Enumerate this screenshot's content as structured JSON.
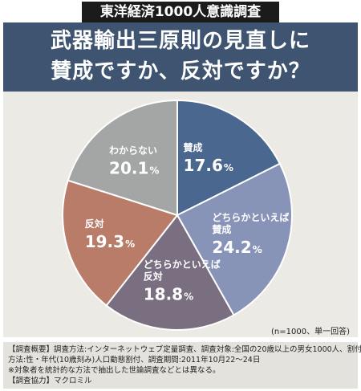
{
  "badge": "東洋経済1000人意識調査",
  "header": {
    "line1": "武器輸出三原則の見直しに",
    "line2": "賛成ですか、反対ですか？"
  },
  "note": "(n=1000、単一回答)",
  "footer": {
    "line1": "【調査概要】調査方法:インターネットウェブ定量調査、調査対象:全国の20歳以上の男女1000人、割付",
    "line2": "方法:性・年代(10歳刻み)人口動態割付、調査期間:2011年10月22～24日",
    "line3": "※対象者を統計的な方法で抽出した世論調査などとは異なる。",
    "line4": "【調査協力】マクロミル"
  },
  "chart_data": {
    "type": "pie",
    "title": "武器輸出三原則の見直しに賛成ですか、反対ですか？",
    "unit": "%",
    "start": "12 o'clock, clockwise",
    "slices": [
      {
        "label": [
          "賛成"
        ],
        "value": 17.6,
        "display": "17.6",
        "color": "#4a6790"
      },
      {
        "label": [
          "どちらかといえば",
          "賛成"
        ],
        "value": 24.2,
        "display": "24.2",
        "color": "#8893b8"
      },
      {
        "label": [
          "どちらかといえば",
          "反対"
        ],
        "value": 18.8,
        "display": "18.8",
        "color": "#7a6f80"
      },
      {
        "label": [
          "反対"
        ],
        "value": 19.3,
        "display": "19.3",
        "color": "#b97c69"
      },
      {
        "label": [
          "わからない"
        ],
        "value": 20.1,
        "display": "20.1",
        "color": "#a3a6a4"
      }
    ]
  }
}
